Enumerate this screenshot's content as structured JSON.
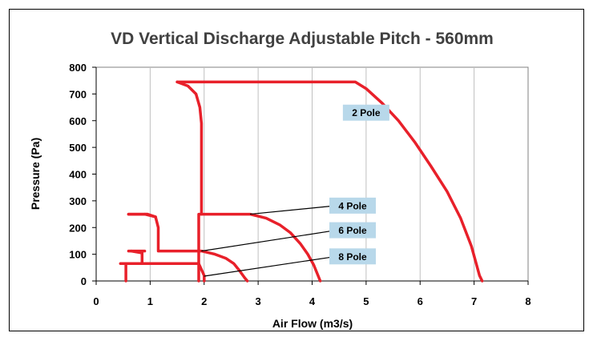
{
  "chart_data": {
    "type": "line",
    "title": "VD Vertical Discharge Adjustable Pitch - 560mm",
    "xlabel": "Air Flow (m3/s)",
    "ylabel": "Pressure (Pa)",
    "xlim": [
      0,
      8
    ],
    "ylim": [
      0,
      800
    ],
    "x_ticks": [
      0,
      1,
      2,
      3,
      4,
      5,
      6,
      7,
      8
    ],
    "y_ticks": [
      0,
      100,
      200,
      300,
      400,
      500,
      600,
      700,
      800
    ],
    "grid": "vertical",
    "series_color": "#e8202a",
    "series": [
      {
        "name": "2 Pole",
        "label_at": [
          5.0,
          630
        ],
        "pointer": null,
        "points": [
          [
            1.5,
            745
          ],
          [
            4.8,
            745
          ],
          [
            5.0,
            720
          ],
          [
            5.3,
            665
          ],
          [
            5.6,
            600
          ],
          [
            5.9,
            520
          ],
          [
            6.2,
            430
          ],
          [
            6.5,
            335
          ],
          [
            6.75,
            235
          ],
          [
            6.95,
            130
          ],
          [
            7.1,
            20
          ],
          [
            7.15,
            0
          ]
        ]
      },
      {
        "name": "4 Pole",
        "label_at": [
          4.75,
          282
        ],
        "pointer": [
          [
            2.85,
            250
          ],
          [
            4.45,
            282
          ]
        ],
        "points": [
          [
            1.9,
            0
          ],
          [
            1.9,
            250
          ],
          [
            2.1,
            250
          ],
          [
            2.85,
            250
          ],
          [
            3.15,
            235
          ],
          [
            3.4,
            210
          ],
          [
            3.6,
            180
          ],
          [
            3.78,
            140
          ],
          [
            3.92,
            100
          ],
          [
            4.03,
            60
          ],
          [
            4.12,
            15
          ],
          [
            4.15,
            0
          ]
        ]
      },
      {
        "name": "6 Pole",
        "label_at": [
          4.75,
          190
        ],
        "pointer": [
          [
            1.95,
            112
          ],
          [
            4.45,
            190
          ]
        ],
        "points": [
          [
            0.9,
            250
          ],
          [
            1.1,
            240
          ],
          [
            1.15,
            200
          ],
          [
            1.15,
            112
          ],
          [
            1.95,
            112
          ],
          [
            2.2,
            100
          ],
          [
            2.4,
            85
          ],
          [
            2.55,
            65
          ],
          [
            2.65,
            40
          ],
          [
            2.75,
            12
          ],
          [
            2.8,
            0
          ]
        ]
      },
      {
        "name": "8 Pole",
        "label_at": [
          4.75,
          92
        ],
        "pointer": [
          [
            2.0,
            18
          ],
          [
            4.45,
            92
          ]
        ],
        "points": [
          [
            0.65,
            112
          ],
          [
            0.85,
            105
          ],
          [
            0.85,
            65
          ],
          [
            1.9,
            65
          ],
          [
            2.0,
            20
          ],
          [
            2.0,
            0
          ]
        ]
      }
    ],
    "segments": [
      {
        "points": [
          [
            1.5,
            745
          ],
          [
            1.7,
            730
          ],
          [
            1.85,
            700
          ],
          [
            1.92,
            650
          ],
          [
            1.95,
            590
          ],
          [
            1.95,
            250
          ]
        ]
      },
      {
        "points": [
          [
            0.95,
            250
          ],
          [
            0.6,
            250
          ]
        ]
      },
      {
        "points": [
          [
            0.6,
            250
          ],
          [
            0.95,
            250
          ],
          [
            1.1,
            240
          ]
        ]
      },
      {
        "points": [
          [
            0.65,
            112
          ],
          [
            0.6,
            112
          ],
          [
            0.9,
            112
          ]
        ]
      },
      {
        "points": [
          [
            0.45,
            65
          ],
          [
            0.85,
            65
          ]
        ]
      },
      {
        "points": [
          [
            0.55,
            65
          ],
          [
            0.55,
            0
          ]
        ]
      }
    ]
  }
}
